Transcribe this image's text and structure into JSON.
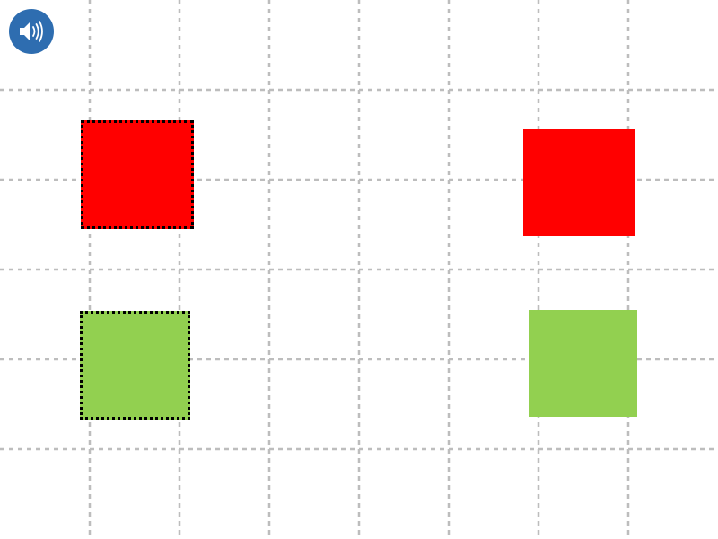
{
  "colors": {
    "red": "#ff0000",
    "green": "#92d050",
    "grid_line": "#bdbdbd",
    "outline": "#000000",
    "sound_button_bg": "#2e6db0",
    "sound_button_icon": "#ffffff"
  },
  "grid": {
    "columns": 8,
    "rows": 6,
    "style": "dashed"
  },
  "toolbar": {
    "sound_icon": "speaker-icon"
  },
  "shapes": [
    {
      "name": "red-square-left",
      "color": "red",
      "outlined": true
    },
    {
      "name": "red-square-right",
      "color": "red",
      "outlined": false
    },
    {
      "name": "green-square-left",
      "color": "green",
      "outlined": true
    },
    {
      "name": "green-square-right",
      "color": "green",
      "outlined": false
    }
  ]
}
